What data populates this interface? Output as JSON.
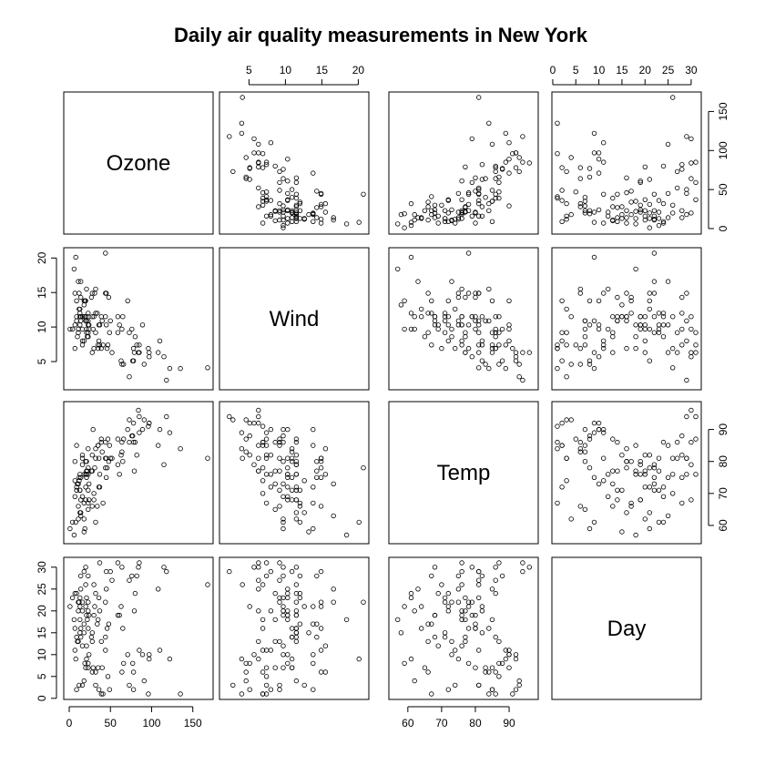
{
  "chart_data": {
    "type": "scatter-matrix",
    "title": "Daily air quality measurements in New York",
    "variables": [
      {
        "name": "Ozone",
        "range": [
          0,
          168
        ],
        "ticks": [
          0,
          50,
          100,
          150
        ]
      },
      {
        "name": "Wind",
        "range": [
          1.7,
          20.7
        ],
        "ticks": [
          5,
          10,
          15,
          20
        ]
      },
      {
        "name": "Temp",
        "range": [
          56,
          97
        ],
        "ticks": [
          60,
          70,
          80,
          90
        ]
      },
      {
        "name": "Day",
        "range": [
          1,
          31
        ],
        "ticks": [
          0,
          5,
          10,
          15,
          20,
          25,
          30
        ]
      }
    ],
    "axis_placement": {
      "top": [
        "Wind",
        "Day"
      ],
      "bottom": [
        "Ozone",
        "Temp"
      ],
      "right": [
        "Ozone",
        "Temp"
      ],
      "left": [
        "Wind",
        "Day"
      ]
    },
    "grid": false,
    "legend": "none",
    "columns": [
      "Ozone",
      "Wind",
      "Temp",
      "Day"
    ],
    "observations": [
      [
        41,
        7.4,
        67,
        1
      ],
      [
        36,
        8.0,
        72,
        2
      ],
      [
        12,
        12.6,
        74,
        3
      ],
      [
        18,
        11.5,
        62,
        4
      ],
      [
        28,
        14.9,
        66,
        6
      ],
      [
        23,
        8.6,
        65,
        7
      ],
      [
        19,
        13.8,
        59,
        8
      ],
      [
        8,
        20.1,
        61,
        9
      ],
      [
        7,
        6.9,
        74,
        11
      ],
      [
        16,
        9.7,
        69,
        12
      ],
      [
        11,
        9.2,
        66,
        13
      ],
      [
        14,
        10.9,
        68,
        14
      ],
      [
        18,
        13.2,
        58,
        15
      ],
      [
        14,
        11.5,
        64,
        16
      ],
      [
        34,
        12.0,
        66,
        17
      ],
      [
        6,
        18.4,
        57,
        18
      ],
      [
        30,
        11.5,
        68,
        19
      ],
      [
        11,
        9.7,
        62,
        20
      ],
      [
        1,
        9.7,
        59,
        21
      ],
      [
        11,
        16.6,
        73,
        22
      ],
      [
        4,
        9.7,
        61,
        23
      ],
      [
        32,
        12.0,
        61,
        24
      ],
      [
        23,
        12.0,
        67,
        28
      ],
      [
        45,
        14.9,
        81,
        29
      ],
      [
        115,
        5.7,
        79,
        30
      ],
      [
        37,
        7.4,
        76,
        31
      ],
      [
        29,
        9.7,
        90,
        7
      ],
      [
        71,
        13.8,
        90,
        10
      ],
      [
        39,
        11.5,
        87,
        13
      ],
      [
        23,
        10.9,
        84,
        16
      ],
      [
        21,
        9.7,
        80,
        19
      ],
      [
        37,
        10.3,
        72,
        20
      ],
      [
        20,
        13.8,
        72,
        21
      ],
      [
        12,
        14.9,
        75,
        22
      ],
      [
        13,
        12.0,
        71,
        23
      ],
      [
        135,
        4.0,
        84,
        1
      ],
      [
        49,
        9.2,
        85,
        2
      ],
      [
        32,
        9.2,
        81,
        3
      ],
      [
        64,
        4.6,
        83,
        6
      ],
      [
        40,
        10.9,
        83,
        7
      ],
      [
        77,
        5.1,
        88,
        8
      ],
      [
        97,
        6.3,
        92,
        9
      ],
      [
        97,
        5.7,
        92,
        10
      ],
      [
        85,
        7.4,
        89,
        11
      ],
      [
        10,
        8.6,
        73,
        13
      ],
      [
        27,
        14.3,
        77,
        14
      ],
      [
        7,
        14.9,
        80,
        16
      ],
      [
        48,
        14.3,
        80,
        17
      ],
      [
        35,
        6.9,
        85,
        18
      ],
      [
        61,
        10.3,
        76,
        19
      ],
      [
        79,
        6.3,
        77,
        20
      ],
      [
        63,
        5.1,
        82,
        21
      ],
      [
        16,
        11.5,
        79,
        22
      ],
      [
        80,
        8.6,
        86,
        24
      ],
      [
        108,
        6.3,
        85,
        25
      ],
      [
        20,
        11.5,
        76,
        26
      ],
      [
        52,
        6.3,
        81,
        27
      ],
      [
        82,
        7.4,
        82,
        28
      ],
      [
        50,
        10.9,
        81,
        29
      ],
      [
        64,
        9.7,
        86,
        30
      ],
      [
        59,
        9.2,
        87,
        31
      ],
      [
        39,
        6.9,
        86,
        1
      ],
      [
        9,
        13.8,
        85,
        2
      ],
      [
        16,
        7.4,
        81,
        3
      ],
      [
        78,
        6.9,
        86,
        6
      ],
      [
        35,
        7.4,
        85,
        7
      ],
      [
        66,
        4.6,
        87,
        8
      ],
      [
        122,
        4.0,
        89,
        9
      ],
      [
        89,
        10.3,
        90,
        10
      ],
      [
        110,
        8.0,
        90,
        11
      ],
      [
        44,
        11.5,
        86,
        14
      ],
      [
        28,
        11.5,
        82,
        15
      ],
      [
        65,
        11.5,
        80,
        16
      ],
      [
        22,
        8.6,
        77,
        18
      ],
      [
        59,
        11.5,
        79,
        19
      ],
      [
        23,
        11.5,
        76,
        20
      ],
      [
        31,
        14.9,
        78,
        21
      ],
      [
        44,
        20.7,
        78,
        22
      ],
      [
        21,
        9.2,
        77,
        23
      ],
      [
        9,
        11.5,
        72,
        24
      ],
      [
        45,
        10.3,
        75,
        25
      ],
      [
        168,
        4.1,
        81,
        26
      ],
      [
        73,
        9.2,
        86,
        27
      ],
      [
        76,
        9.7,
        88,
        28
      ],
      [
        118,
        2.3,
        94,
        29
      ],
      [
        84,
        6.3,
        96,
        30
      ],
      [
        85,
        6.3,
        94,
        31
      ],
      [
        96,
        6.9,
        91,
        1
      ],
      [
        78,
        5.1,
        92,
        2
      ],
      [
        73,
        2.8,
        93,
        3
      ],
      [
        91,
        4.6,
        93,
        4
      ],
      [
        47,
        7.4,
        87,
        5
      ],
      [
        32,
        15.5,
        84,
        6
      ],
      [
        20,
        10.9,
        80,
        7
      ],
      [
        23,
        10.3,
        78,
        8
      ],
      [
        21,
        10.9,
        75,
        9
      ],
      [
        24,
        9.7,
        73,
        10
      ],
      [
        44,
        14.9,
        81,
        11
      ],
      [
        21,
        15.5,
        76,
        12
      ],
      [
        28,
        6.3,
        77,
        13
      ],
      [
        9,
        10.9,
        71,
        14
      ],
      [
        13,
        11.5,
        71,
        15
      ],
      [
        46,
        6.9,
        78,
        16
      ],
      [
        18,
        13.8,
        67,
        17
      ],
      [
        13,
        10.3,
        76,
        18
      ],
      [
        24,
        10.3,
        68,
        19
      ],
      [
        16,
        8.0,
        82,
        20
      ],
      [
        13,
        12.6,
        64,
        21
      ],
      [
        23,
        9.2,
        71,
        22
      ],
      [
        36,
        10.3,
        81,
        23
      ],
      [
        7,
        10.3,
        69,
        24
      ],
      [
        14,
        16.6,
        63,
        25
      ],
      [
        30,
        6.9,
        70,
        26
      ],
      [
        14,
        14.3,
        75,
        28
      ],
      [
        18,
        8.0,
        76,
        29
      ],
      [
        20,
        11.5,
        68,
        30
      ]
    ]
  }
}
